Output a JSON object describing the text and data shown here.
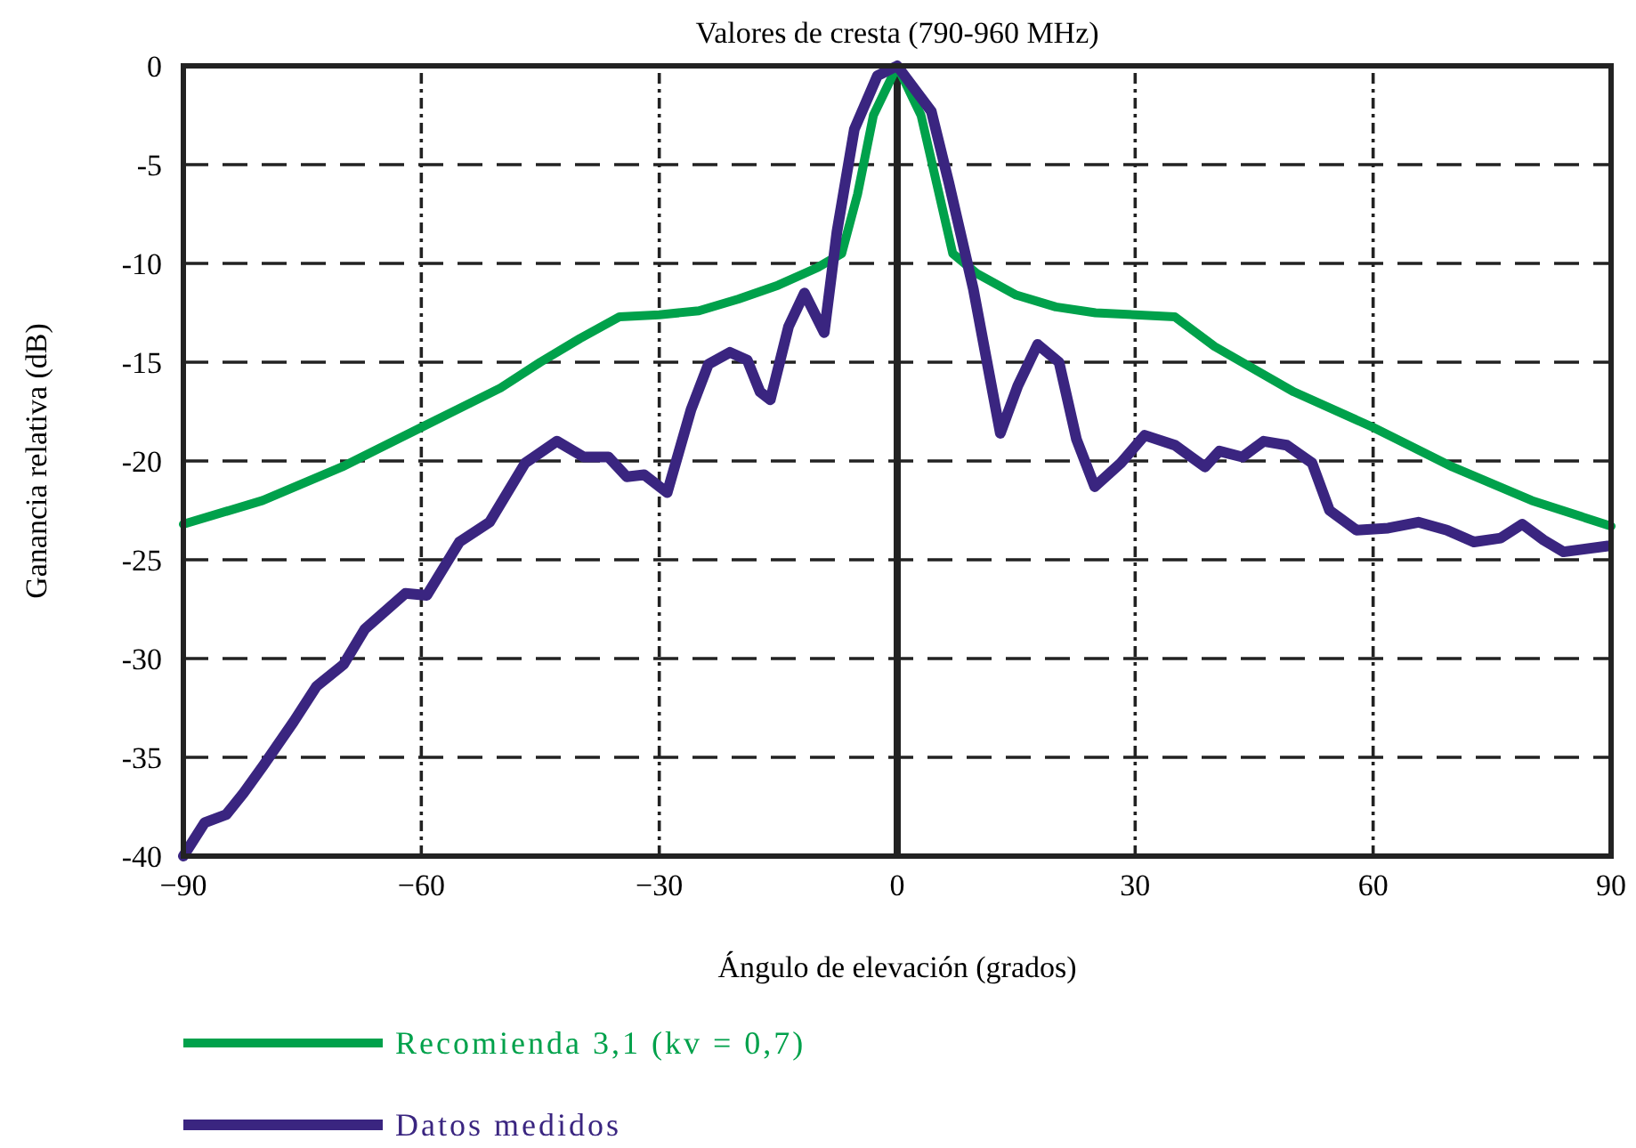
{
  "chart_data": {
    "type": "line",
    "title": "Valores de cresta (790-960 MHz)",
    "xlabel": "Ángulo de elevación (grados)",
    "ylabel": "Ganancia relativa (dB)",
    "xlim": [
      -90,
      90
    ],
    "ylim": [
      -40,
      0
    ],
    "xticks": [
      {
        "value": -90,
        "label": "−90"
      },
      {
        "value": -60,
        "label": "−60"
      },
      {
        "value": -30,
        "label": "−30"
      },
      0,
      30,
      60,
      90
    ],
    "yticks": [
      -40,
      -35,
      -30,
      -25,
      -20,
      -15,
      -10,
      -5,
      0
    ],
    "grid": true,
    "legend": "bottom",
    "line_style": "solid",
    "ref_lines": [
      {
        "axis": "x",
        "value": 0,
        "line_style": "solid",
        "color": "#222222"
      }
    ],
    "series": [
      {
        "name": "Recomienda 3,1 (kv = 0,7)",
        "color": "#00a14b",
        "x": [
          -90,
          -80,
          -70,
          -60,
          -50,
          -45,
          -40,
          -35,
          -30,
          -25,
          -20,
          -15,
          -10,
          -7,
          -5,
          -3,
          0,
          3,
          5,
          7,
          10,
          15,
          20,
          25,
          30,
          35,
          40,
          50,
          60,
          70,
          80,
          90
        ],
        "values": [
          -23.2,
          -22,
          -20.3,
          -18.3,
          -16.3,
          -15,
          -13.8,
          -12.7,
          -12.6,
          -12.4,
          -11.8,
          -11.1,
          -10.2,
          -9.5,
          -6.5,
          -2.5,
          0,
          -2.5,
          -6,
          -9.5,
          -10.5,
          -11.6,
          -12.2,
          -12.5,
          -12.6,
          -12.7,
          -14.2,
          -16.5,
          -18.3,
          -20.3,
          -22,
          -23.3
        ]
      },
      {
        "name": "Datos medidos",
        "color": "#3a2580",
        "x": [
          -90,
          -87.3,
          -84.6,
          -82.4,
          -79.9,
          -76.1,
          -73.2,
          -69.8,
          -67.1,
          -62,
          -59.3,
          -55.2,
          -51.4,
          -46.9,
          -42.9,
          -39.5,
          -36.4,
          -34.1,
          -31.9,
          -29,
          -26,
          -23.8,
          -21.1,
          -18.9,
          -17.3,
          -16,
          -13.7,
          -11.7,
          -9.2,
          -7.6,
          -5.4,
          -2.5,
          0,
          4.3,
          6.5,
          9.6,
          13,
          15.2,
          17.7,
          20.4,
          22.6,
          24.9,
          28.2,
          31.2,
          35,
          38.8,
          40.6,
          43.5,
          46.2,
          49.1,
          52.3,
          54.5,
          57.9,
          61.9,
          65.7,
          69.3,
          72.7,
          76.1,
          78.8,
          81.5,
          84,
          89.6
        ],
        "values": [
          -40,
          -38.3,
          -37.9,
          -36.8,
          -35.4,
          -33.2,
          -31.4,
          -30.3,
          -28.5,
          -26.7,
          -26.8,
          -24.1,
          -23.1,
          -20.1,
          -19,
          -19.8,
          -19.8,
          -20.8,
          -20.7,
          -21.6,
          -17.4,
          -15.1,
          -14.5,
          -14.9,
          -16.5,
          -16.9,
          -13.2,
          -11.5,
          -13.5,
          -8.4,
          -3.2,
          -0.5,
          0,
          -2.3,
          -5.9,
          -11.3,
          -18.6,
          -16.2,
          -14.1,
          -15,
          -18.9,
          -21.3,
          -20.1,
          -18.7,
          -19.2,
          -20.3,
          -19.5,
          -19.8,
          -19,
          -19.2,
          -20.1,
          -22.5,
          -23.5,
          -23.4,
          -23.1,
          -23.5,
          -24.1,
          -23.9,
          -23.2,
          -24,
          -24.6,
          -24.3
        ]
      }
    ]
  }
}
